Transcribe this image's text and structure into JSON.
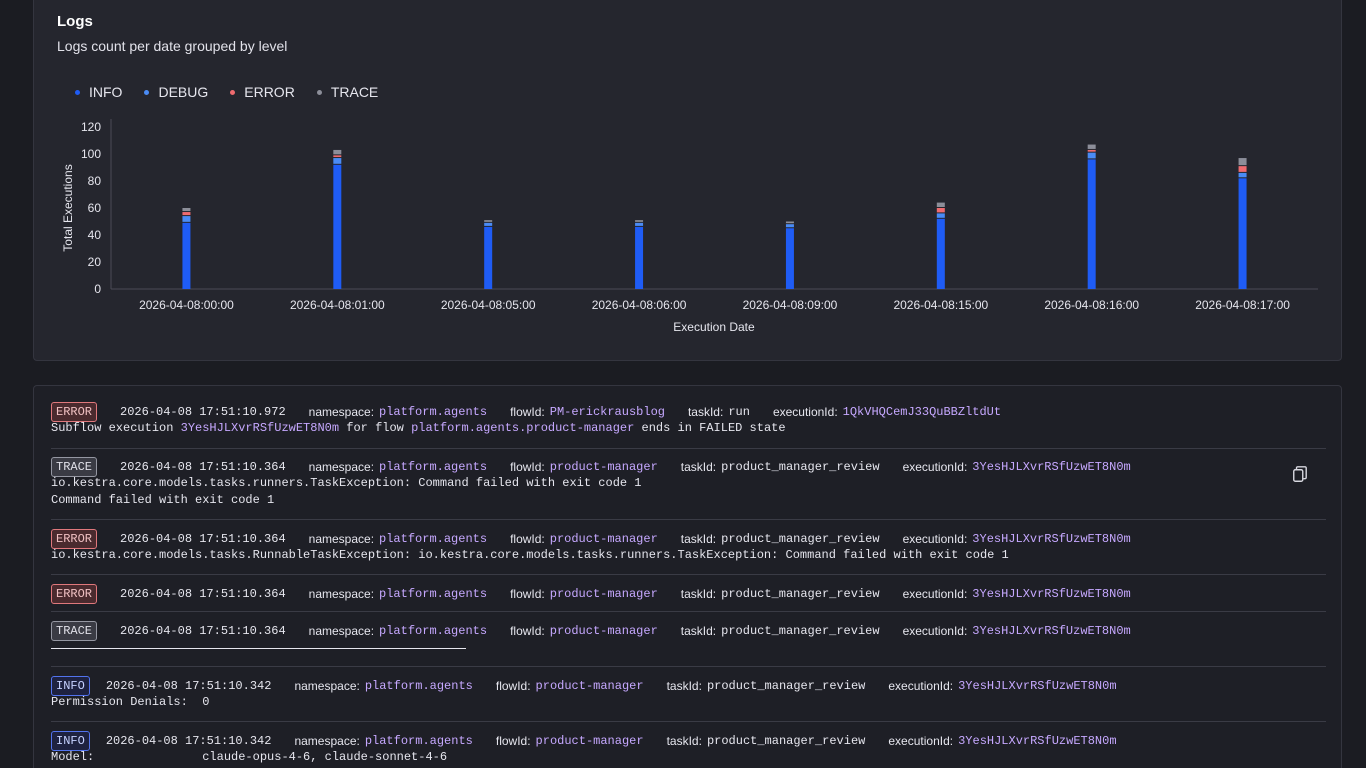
{
  "chart_card": {
    "title": "Logs",
    "subtitle": "Logs count per date grouped by level"
  },
  "colors": {
    "info": "#1f5cf5",
    "debug": "#4a8bf5",
    "error": "#ef6b6f",
    "trace": "#8c8e99"
  },
  "chart_data": {
    "type": "bar",
    "stacked": true,
    "xlabel": "Execution Date",
    "ylabel": "Total Executions",
    "ylim": [
      0,
      120
    ],
    "yticks": [
      0,
      20,
      40,
      60,
      80,
      100,
      120
    ],
    "legend_position": "top-left",
    "categories": [
      "2026-04-08:00:00",
      "2026-04-08:01:00",
      "2026-04-08:05:00",
      "2026-04-08:06:00",
      "2026-04-08:09:00",
      "2026-04-08:15:00",
      "2026-04-08:16:00",
      "2026-04-08:17:00"
    ],
    "series": [
      {
        "name": "INFO",
        "values": [
          49,
          92,
          46,
          46,
          45,
          52,
          96,
          82
        ]
      },
      {
        "name": "DEBUG",
        "values": [
          5,
          5,
          3,
          3,
          3,
          4,
          5,
          4
        ]
      },
      {
        "name": "ERROR",
        "values": [
          3,
          2,
          0,
          0,
          0,
          4,
          2,
          5
        ]
      },
      {
        "name": "TRACE",
        "values": [
          3,
          4,
          2,
          2,
          2,
          4,
          4,
          6
        ]
      }
    ]
  },
  "logs": [
    {
      "level": "ERROR",
      "timestamp": "2026-04-08 17:51:10.972",
      "namespace_label": "namespace:",
      "namespace": "platform.agents",
      "flow_label": "flowId:",
      "flow": "PM-erickrausblog",
      "task_label": "taskId:",
      "task": "run",
      "exec_label": "executionId:",
      "exec": "1QkVHQCemJ33QuBBZltdUt",
      "message_parts": [
        "Subflow execution ",
        "3YesHJLXvrRSfUzwET8N0m",
        " for flow ",
        "platform.agents.product-manager",
        " ends in FAILED state"
      ]
    },
    {
      "level": "TRACE",
      "timestamp": "2026-04-08 17:51:10.364",
      "namespace_label": "namespace:",
      "namespace": "platform.agents",
      "flow_label": "flowId:",
      "flow": "product-manager",
      "task_label": "taskId:",
      "task": "product_manager_review",
      "exec_label": "executionId:",
      "exec": "3YesHJLXvrRSfUzwET8N0m",
      "message_lines": [
        "io.kestra.core.models.tasks.runners.TaskException: Command failed with exit code 1",
        "Command failed with exit code 1"
      ]
    },
    {
      "level": "ERROR",
      "timestamp": "2026-04-08 17:51:10.364",
      "namespace_label": "namespace:",
      "namespace": "platform.agents",
      "flow_label": "flowId:",
      "flow": "product-manager",
      "task_label": "taskId:",
      "task": "product_manager_review",
      "exec_label": "executionId:",
      "exec": "3YesHJLXvrRSfUzwET8N0m",
      "message_lines": [
        "io.kestra.core.models.tasks.RunnableTaskException: io.kestra.core.models.tasks.runners.TaskException: Command failed with exit code 1"
      ]
    },
    {
      "level": "ERROR",
      "timestamp": "2026-04-08 17:51:10.364",
      "namespace_label": "namespace:",
      "namespace": "platform.agents",
      "flow_label": "flowId:",
      "flow": "product-manager",
      "task_label": "taskId:",
      "task": "product_manager_review",
      "exec_label": "executionId:",
      "exec": "3YesHJLXvrRSfUzwET8N0m"
    },
    {
      "level": "TRACE",
      "timestamp": "2026-04-08 17:51:10.364",
      "namespace_label": "namespace:",
      "namespace": "platform.agents",
      "flow_label": "flowId:",
      "flow": "product-manager",
      "task_label": "taskId:",
      "task": "product_manager_review",
      "exec_label": "executionId:",
      "exec": "3YesHJLXvrRSfUzwET8N0m"
    },
    {
      "level": "INFO",
      "timestamp": "2026-04-08 17:51:10.342",
      "namespace_label": "namespace:",
      "namespace": "platform.agents",
      "flow_label": "flowId:",
      "flow": "product-manager",
      "task_label": "taskId:",
      "task": "product_manager_review",
      "exec_label": "executionId:",
      "exec": "3YesHJLXvrRSfUzwET8N0m",
      "message_lines": [
        "Permission Denials:  0"
      ]
    },
    {
      "level": "INFO",
      "timestamp": "2026-04-08 17:51:10.342",
      "namespace_label": "namespace:",
      "namespace": "platform.agents",
      "flow_label": "flowId:",
      "flow": "product-manager",
      "task_label": "taskId:",
      "task": "product_manager_review",
      "exec_label": "executionId:",
      "exec": "3YesHJLXvrRSfUzwET8N0m",
      "message_lines": [
        "Model:               claude-opus-4-6, claude-sonnet-4-6"
      ]
    }
  ]
}
